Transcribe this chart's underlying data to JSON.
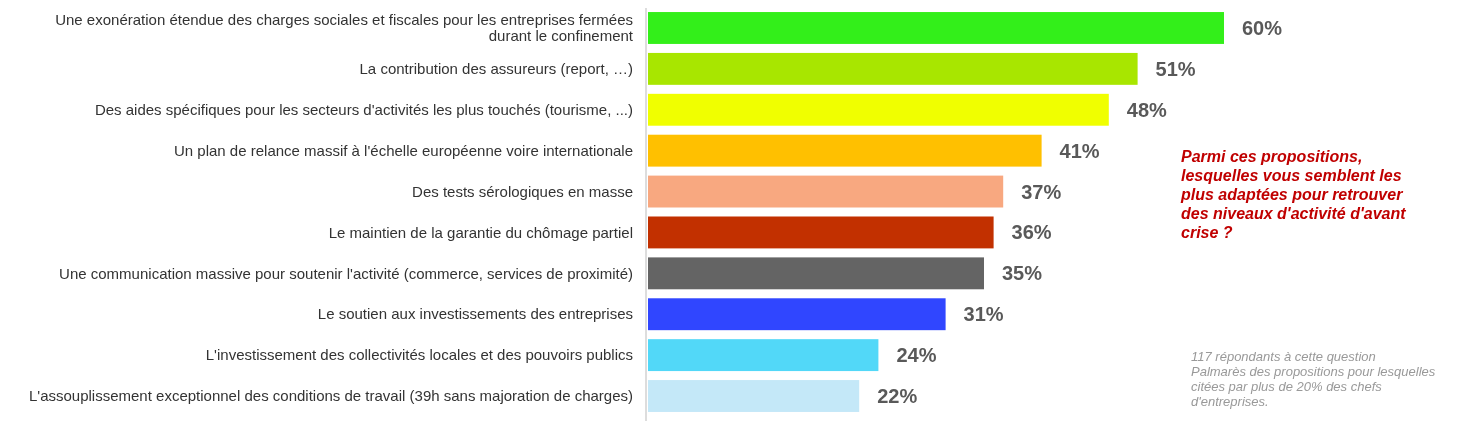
{
  "chart_data": {
    "type": "bar",
    "orientation": "horizontal",
    "categories": [
      "Une exonération étendue des charges sociales et fiscales pour les entreprises fermées durant le confinement",
      "La contribution des assureurs (report, …)",
      "Des aides spécifiques pour les secteurs d'activités les plus touchés (tourisme, ...)",
      "Un plan de relance massif à l'échelle européenne voire internationale",
      "Des tests sérologiques en masse",
      "Le maintien de la garantie du chômage partiel",
      "Une communication massive pour soutenir l'activité (commerce, services de proximité)",
      "Le soutien aux investissements des entreprises",
      "L'investissement des collectivités locales et des pouvoirs publics",
      "L'assouplissement exceptionnel des conditions de travail (39h sans majoration de charges)"
    ],
    "values": [
      60,
      51,
      48,
      41,
      37,
      36,
      35,
      31,
      24,
      22
    ],
    "value_labels": [
      "60%",
      "51%",
      "48%",
      "41%",
      "37%",
      "36%",
      "35%",
      "31%",
      "24%",
      "22%"
    ],
    "colors": [
      "#33ef1a",
      "#a8e600",
      "#f0ff00",
      "#ffc000",
      "#f8a880",
      "#c23000",
      "#646464",
      "#3046ff",
      "#52d8f8",
      "#c4e8f8"
    ],
    "annotations": [
      "Parmi ces propositions, lesquelles vous semblent les plus adaptées pour retrouver des niveaux d'activité d'avant crise ?",
      "117 répondants à cette question",
      "Palmarès des propositions pour lesquelles citées par plus de 20% des chefs d'entreprises."
    ]
  }
}
